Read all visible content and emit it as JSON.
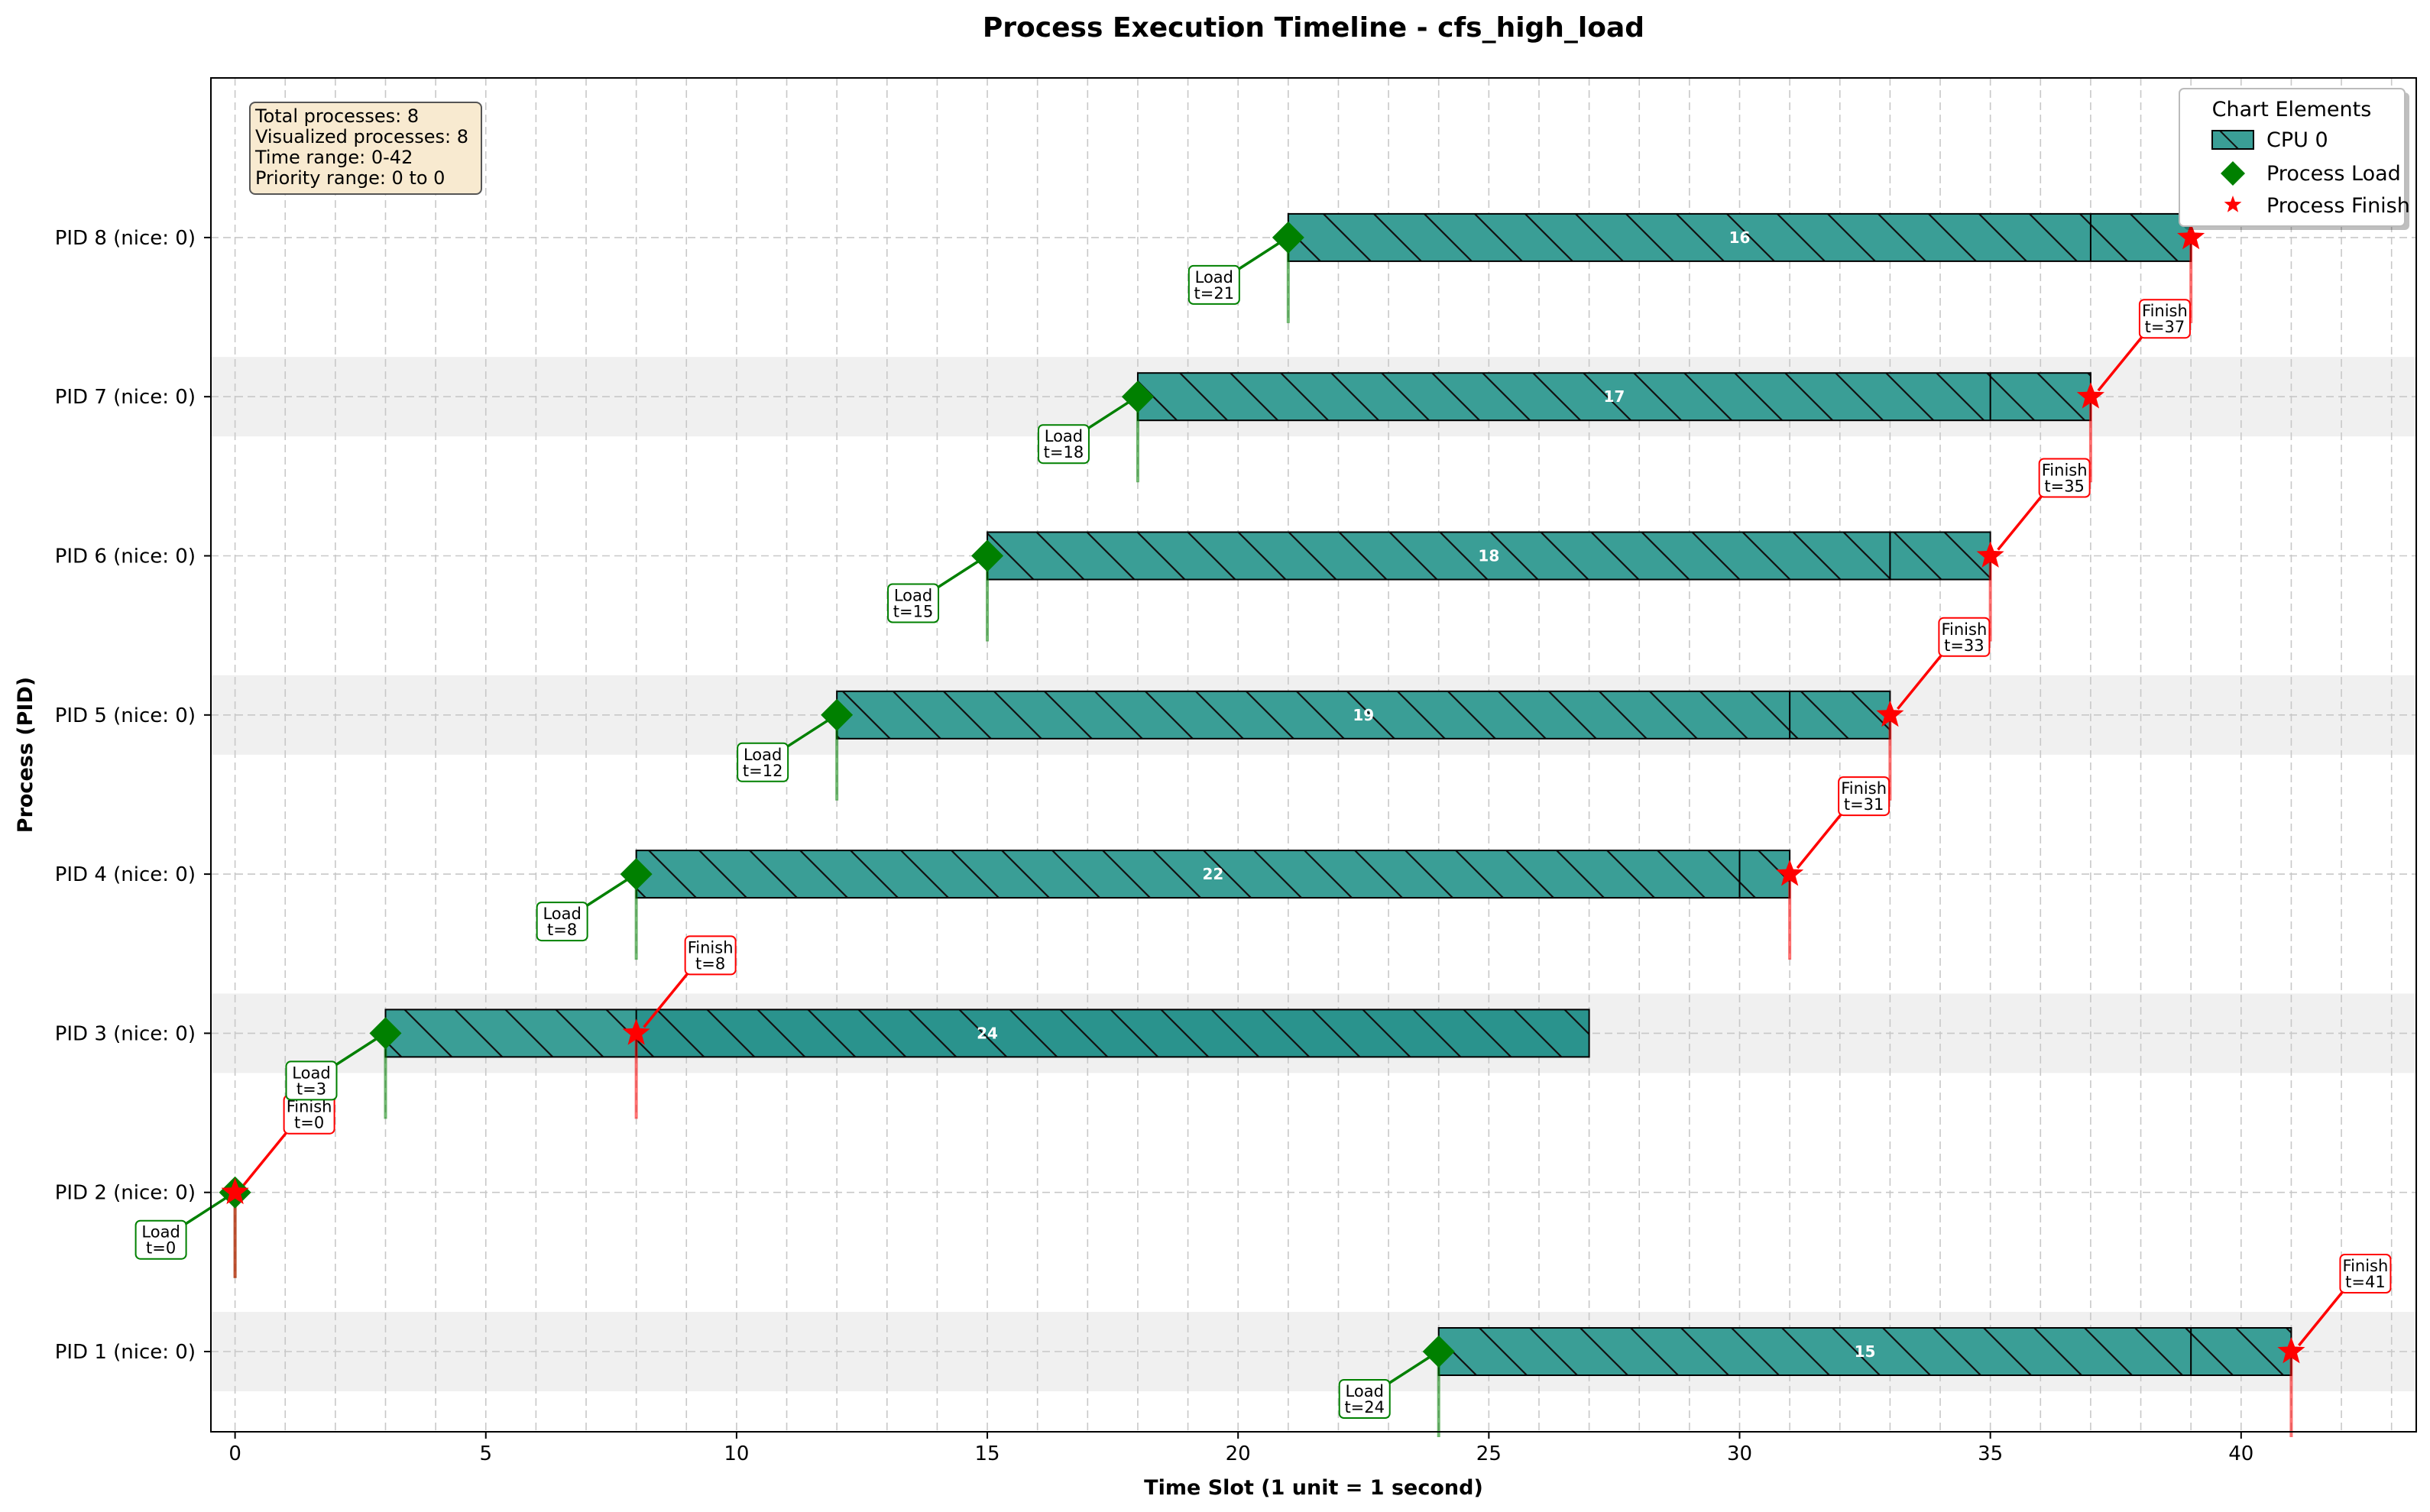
{
  "chart_data": {
    "type": "timeline",
    "title": "Process Execution Timeline - cfs_high_load",
    "xlabel": "Time Slot (1 unit = 1 second)",
    "ylabel": "Process (PID)",
    "xlim": [
      -0.45,
      43.5
    ],
    "x_ticks": [
      0,
      5,
      10,
      15,
      20,
      25,
      30,
      35,
      40
    ],
    "grid": true,
    "processes": [
      {
        "pid": 1,
        "label": "PID 1 (nice: 0)",
        "load": 24,
        "finish": 41,
        "run_end": 41,
        "segment_split": 39,
        "bar_label": "15",
        "load_text": "Load\nt=24",
        "finish_text": "Finish\nt=41"
      },
      {
        "pid": 2,
        "label": "PID 2 (nice: 0)",
        "load": 0,
        "finish": 0,
        "run_end": null,
        "segment_split": null,
        "bar_label": "",
        "load_text": "Load\nt=0",
        "finish_text": "Finish\nt=0"
      },
      {
        "pid": 3,
        "label": "PID 3 (nice: 0)",
        "load": 3,
        "finish": 8,
        "run_end": 27,
        "segment_split": 8,
        "bar_label": "24",
        "load_text": "Load\nt=3",
        "finish_text": "Finish\nt=8"
      },
      {
        "pid": 4,
        "label": "PID 4 (nice: 0)",
        "load": 8,
        "finish": 31,
        "run_end": 31,
        "segment_split": 30,
        "bar_label": "22",
        "load_text": "Load\nt=8",
        "finish_text": "Finish\nt=31"
      },
      {
        "pid": 5,
        "label": "PID 5 (nice: 0)",
        "load": 12,
        "finish": 33,
        "run_end": 33,
        "segment_split": 31,
        "bar_label": "19",
        "load_text": "Load\nt=12",
        "finish_text": "Finish\nt=33"
      },
      {
        "pid": 6,
        "label": "PID 6 (nice: 0)",
        "load": 15,
        "finish": 35,
        "run_end": 35,
        "segment_split": 33,
        "bar_label": "18",
        "load_text": "Load\nt=15",
        "finish_text": "Finish\nt=35"
      },
      {
        "pid": 7,
        "label": "PID 7 (nice: 0)",
        "load": 18,
        "finish": 37,
        "run_end": 37,
        "segment_split": 35,
        "bar_label": "17",
        "load_text": "Load\nt=18",
        "finish_text": "Finish\nt=37"
      },
      {
        "pid": 8,
        "label": "PID 8 (nice: 0)",
        "load": 21,
        "finish": 39,
        "run_end": 39,
        "segment_split": 37,
        "bar_label": "16",
        "load_text": "Load\nt=21",
        "finish_text": ""
      }
    ],
    "info_box": [
      "Total processes: 8",
      "Visualized processes: 8",
      "Time range: 0-42",
      "Priority range: 0 to 0"
    ],
    "legend": {
      "title": "Chart Elements",
      "position": "top-right",
      "items": [
        "CPU 0",
        "Process Load",
        "Process Finish"
      ]
    },
    "colors": {
      "bar": "#3a9e96",
      "bar_dark": "#2a938d",
      "load": "#008000",
      "finish": "#ff0000",
      "band": "#f0f0f0",
      "grid": "#c8c8c8",
      "info_bg": "#f8ead0"
    }
  }
}
